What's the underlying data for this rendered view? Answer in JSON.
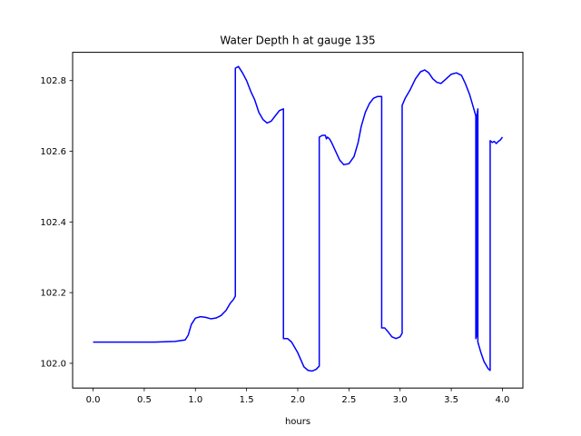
{
  "chart_data": {
    "type": "line",
    "title": "Water Depth h at gauge 135",
    "xlabel": "hours",
    "ylabel": "",
    "xlim": [
      -0.2,
      4.2
    ],
    "ylim": [
      101.93,
      102.88
    ],
    "x_ticks": [
      0.0,
      0.5,
      1.0,
      1.5,
      2.0,
      2.5,
      3.0,
      3.5,
      4.0
    ],
    "x_tick_labels": [
      "0.0",
      "0.5",
      "1.0",
      "1.5",
      "2.0",
      "2.5",
      "3.0",
      "3.5",
      "4.0"
    ],
    "y_ticks": [
      102.0,
      102.2,
      102.4,
      102.6,
      102.8
    ],
    "y_tick_labels": [
      "102.0",
      "102.2",
      "102.4",
      "102.6",
      "102.8"
    ],
    "grid": false,
    "series": [
      {
        "color": "#0000ff",
        "x": [
          0.0,
          0.3,
          0.6,
          0.8,
          0.9,
          0.93,
          0.96,
          1.0,
          1.05,
          1.1,
          1.15,
          1.2,
          1.25,
          1.3,
          1.34,
          1.37,
          1.39,
          1.39,
          1.42,
          1.46,
          1.5,
          1.54,
          1.58,
          1.62,
          1.66,
          1.7,
          1.74,
          1.78,
          1.82,
          1.86,
          1.86,
          1.9,
          1.94,
          2.0,
          2.06,
          2.1,
          2.14,
          2.18,
          2.21,
          2.21,
          2.24,
          2.27,
          2.28,
          2.29,
          2.31,
          2.33,
          2.37,
          2.41,
          2.45,
          2.5,
          2.55,
          2.59,
          2.62,
          2.66,
          2.7,
          2.74,
          2.78,
          2.82,
          2.82,
          2.85,
          2.88,
          2.92,
          2.96,
          3.0,
          3.02,
          3.02,
          3.05,
          3.1,
          3.15,
          3.2,
          3.24,
          3.28,
          3.32,
          3.36,
          3.4,
          3.45,
          3.5,
          3.55,
          3.6,
          3.64,
          3.68,
          3.72,
          3.74,
          3.74,
          3.75,
          3.75,
          3.76,
          3.76,
          3.79,
          3.82,
          3.86,
          3.88,
          3.88,
          3.9,
          3.92,
          3.94,
          3.96,
          3.98,
          4.0
        ],
        "y": [
          102.06,
          102.06,
          102.06,
          102.062,
          102.066,
          102.08,
          102.11,
          102.128,
          102.132,
          102.13,
          102.126,
          102.128,
          102.135,
          102.15,
          102.17,
          102.18,
          102.19,
          102.835,
          102.84,
          102.822,
          102.8,
          102.77,
          102.745,
          102.71,
          102.69,
          102.68,
          102.685,
          102.7,
          102.715,
          102.72,
          102.07,
          102.07,
          102.06,
          102.03,
          101.99,
          101.98,
          101.978,
          101.983,
          101.992,
          102.64,
          102.645,
          102.645,
          102.635,
          102.64,
          102.635,
          102.625,
          102.6,
          102.575,
          102.562,
          102.565,
          102.585,
          102.625,
          102.67,
          102.71,
          102.735,
          102.75,
          102.755,
          102.755,
          102.1,
          102.1,
          102.09,
          102.075,
          102.07,
          102.075,
          102.085,
          102.73,
          102.75,
          102.775,
          102.805,
          102.825,
          102.83,
          102.822,
          102.805,
          102.795,
          102.792,
          102.805,
          102.818,
          102.822,
          102.815,
          102.79,
          102.76,
          102.72,
          102.7,
          102.07,
          102.08,
          102.7,
          102.72,
          102.06,
          102.03,
          102.005,
          101.985,
          101.98,
          102.63,
          102.625,
          102.628,
          102.622,
          102.628,
          102.632,
          102.64
        ]
      }
    ]
  }
}
